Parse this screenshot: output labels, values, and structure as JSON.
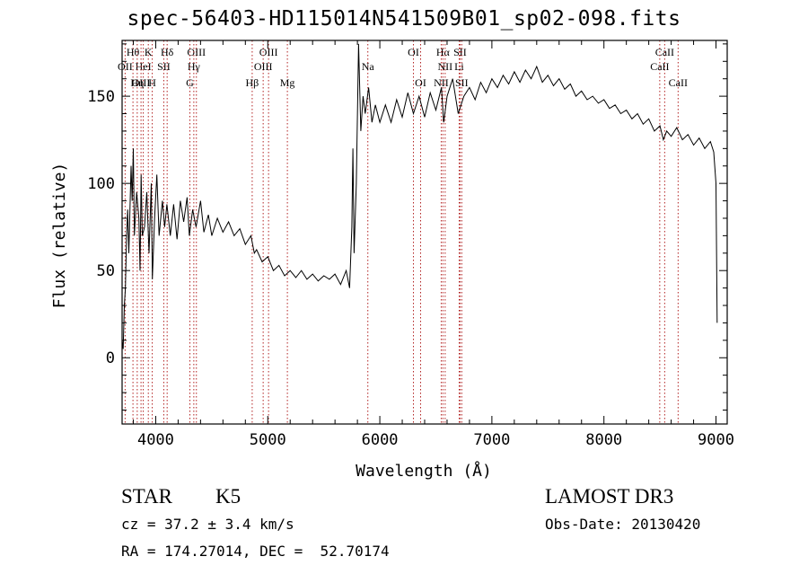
{
  "title": "spec-56403-HD115014N541509B01_sp02-098.fits",
  "chart_data": {
    "type": "line",
    "xlabel": "Wavelength (Å)",
    "ylabel": "Flux (relative)",
    "xlim": [
      3700,
      9100
    ],
    "ylim": [
      -38,
      182
    ],
    "xticks": [
      4000,
      5000,
      6000,
      7000,
      8000,
      9000
    ],
    "yticks": [
      0,
      50,
      100,
      150
    ],
    "grid": false,
    "series": [
      {
        "points": [
          [
            3700,
            10
          ],
          [
            3710,
            5
          ],
          [
            3720,
            30
          ],
          [
            3730,
            40
          ],
          [
            3740,
            70
          ],
          [
            3750,
            85
          ],
          [
            3760,
            60
          ],
          [
            3780,
            110
          ],
          [
            3790,
            90
          ],
          [
            3800,
            120
          ],
          [
            3810,
            70
          ],
          [
            3830,
            95
          ],
          [
            3850,
            80
          ],
          [
            3860,
            50
          ],
          [
            3870,
            105
          ],
          [
            3880,
            70
          ],
          [
            3900,
            75
          ],
          [
            3920,
            95
          ],
          [
            3940,
            60
          ],
          [
            3960,
            100
          ],
          [
            3970,
            45
          ],
          [
            3990,
            80
          ],
          [
            4010,
            105
          ],
          [
            4030,
            70
          ],
          [
            4060,
            90
          ],
          [
            4080,
            75
          ],
          [
            4100,
            88
          ],
          [
            4130,
            70
          ],
          [
            4160,
            88
          ],
          [
            4190,
            68
          ],
          [
            4220,
            90
          ],
          [
            4250,
            78
          ],
          [
            4280,
            92
          ],
          [
            4300,
            70
          ],
          [
            4330,
            85
          ],
          [
            4360,
            75
          ],
          [
            4400,
            90
          ],
          [
            4430,
            72
          ],
          [
            4470,
            82
          ],
          [
            4500,
            70
          ],
          [
            4550,
            80
          ],
          [
            4600,
            72
          ],
          [
            4650,
            78
          ],
          [
            4700,
            70
          ],
          [
            4750,
            74
          ],
          [
            4800,
            65
          ],
          [
            4850,
            70
          ],
          [
            4880,
            60
          ],
          [
            4900,
            62
          ],
          [
            4950,
            55
          ],
          [
            5000,
            58
          ],
          [
            5050,
            50
          ],
          [
            5100,
            53
          ],
          [
            5150,
            47
          ],
          [
            5200,
            50
          ],
          [
            5250,
            46
          ],
          [
            5300,
            50
          ],
          [
            5350,
            45
          ],
          [
            5400,
            48
          ],
          [
            5450,
            44
          ],
          [
            5500,
            47
          ],
          [
            5550,
            45
          ],
          [
            5600,
            48
          ],
          [
            5650,
            42
          ],
          [
            5700,
            50
          ],
          [
            5730,
            40
          ],
          [
            5750,
            75
          ],
          [
            5760,
            120
          ],
          [
            5770,
            60
          ],
          [
            5790,
            100
          ],
          [
            5810,
            180
          ],
          [
            5830,
            130
          ],
          [
            5850,
            150
          ],
          [
            5870,
            140
          ],
          [
            5900,
            155
          ],
          [
            5930,
            135
          ],
          [
            5960,
            145
          ],
          [
            6000,
            135
          ],
          [
            6050,
            145
          ],
          [
            6100,
            135
          ],
          [
            6150,
            148
          ],
          [
            6200,
            138
          ],
          [
            6250,
            152
          ],
          [
            6300,
            140
          ],
          [
            6350,
            150
          ],
          [
            6400,
            138
          ],
          [
            6450,
            152
          ],
          [
            6500,
            142
          ],
          [
            6550,
            155
          ],
          [
            6570,
            135
          ],
          [
            6600,
            150
          ],
          [
            6650,
            160
          ],
          [
            6700,
            140
          ],
          [
            6750,
            150
          ],
          [
            6800,
            155
          ],
          [
            6850,
            148
          ],
          [
            6900,
            158
          ],
          [
            6950,
            152
          ],
          [
            7000,
            160
          ],
          [
            7050,
            155
          ],
          [
            7100,
            162
          ],
          [
            7150,
            157
          ],
          [
            7200,
            164
          ],
          [
            7250,
            158
          ],
          [
            7300,
            165
          ],
          [
            7350,
            160
          ],
          [
            7400,
            167
          ],
          [
            7450,
            158
          ],
          [
            7500,
            162
          ],
          [
            7550,
            156
          ],
          [
            7600,
            160
          ],
          [
            7650,
            154
          ],
          [
            7700,
            157
          ],
          [
            7750,
            150
          ],
          [
            7800,
            153
          ],
          [
            7850,
            148
          ],
          [
            7900,
            150
          ],
          [
            7950,
            146
          ],
          [
            8000,
            148
          ],
          [
            8050,
            143
          ],
          [
            8100,
            145
          ],
          [
            8150,
            140
          ],
          [
            8200,
            142
          ],
          [
            8250,
            137
          ],
          [
            8300,
            140
          ],
          [
            8350,
            134
          ],
          [
            8400,
            137
          ],
          [
            8450,
            130
          ],
          [
            8500,
            133
          ],
          [
            8530,
            125
          ],
          [
            8560,
            130
          ],
          [
            8600,
            127
          ],
          [
            8650,
            132
          ],
          [
            8700,
            125
          ],
          [
            8750,
            128
          ],
          [
            8800,
            122
          ],
          [
            8850,
            126
          ],
          [
            8900,
            120
          ],
          [
            8950,
            124
          ],
          [
            8980,
            118
          ],
          [
            9000,
            100
          ],
          [
            9010,
            20
          ]
        ]
      }
    ],
    "line_color": "#000000",
    "marker_color": "#b22222",
    "markers": [
      {
        "label": "Hθ",
        "x": 3797,
        "row": 1
      },
      {
        "label": "K",
        "x": 3934,
        "row": 1
      },
      {
        "label": "Hδ",
        "x": 4102,
        "row": 1
      },
      {
        "label": "OIII",
        "x": 4363,
        "row": 1
      },
      {
        "label": "OIII",
        "x": 5007,
        "row": 1
      },
      {
        "label": "OI",
        "x": 6300,
        "row": 1
      },
      {
        "label": "Hα",
        "x": 6563,
        "row": 1
      },
      {
        "label": "SII",
        "x": 6716,
        "row": 1
      },
      {
        "label": "CaII",
        "x": 8542,
        "row": 1
      },
      {
        "label": "OII",
        "x": 3727,
        "row": 2
      },
      {
        "label": "HeI",
        "x": 3889,
        "row": 2
      },
      {
        "label": "SII",
        "x": 4072,
        "row": 2
      },
      {
        "label": "Hγ",
        "x": 4340,
        "row": 2
      },
      {
        "label": "OIII",
        "x": 4959,
        "row": 2
      },
      {
        "label": "Na",
        "x": 5893,
        "row": 2
      },
      {
        "label": "NII",
        "x": 6583,
        "row": 2
      },
      {
        "label": "Li",
        "x": 6708,
        "row": 2
      },
      {
        "label": "CaII",
        "x": 8498,
        "row": 2
      },
      {
        "label": "OIII",
        "x": 3869,
        "row": 3
      },
      {
        "label": "Hη",
        "x": 3835,
        "row": 3
      },
      {
        "label": "H",
        "x": 3969,
        "row": 3
      },
      {
        "label": "G",
        "x": 4305,
        "row": 3
      },
      {
        "label": "Hβ",
        "x": 4861,
        "row": 3
      },
      {
        "label": "Mg",
        "x": 5175,
        "row": 3
      },
      {
        "label": "OI",
        "x": 6364,
        "row": 3
      },
      {
        "label": "NII",
        "x": 6548,
        "row": 3
      },
      {
        "label": "SII",
        "x": 6731,
        "row": 3
      },
      {
        "label": "CaII",
        "x": 8662,
        "row": 3
      }
    ]
  },
  "info": {
    "class": "STAR",
    "subclass": "K5",
    "survey": "LAMOST DR3",
    "cz": "cz = 37.2 ± 3.4 km/s",
    "obs_date": "Obs-Date: 20130420",
    "coords": "RA = 174.27014, DEC =  52.70174"
  }
}
